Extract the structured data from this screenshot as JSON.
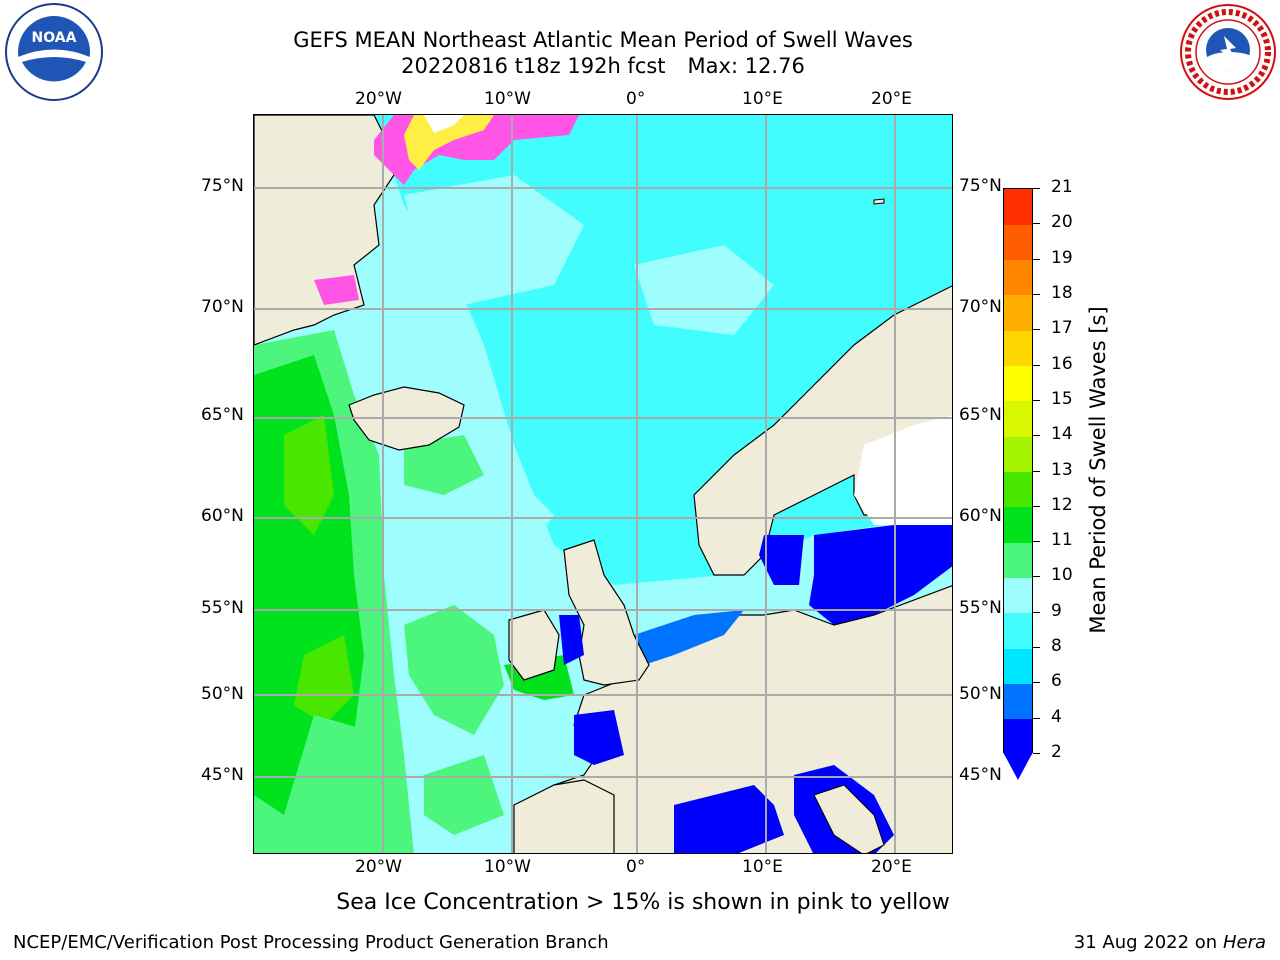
{
  "header": {
    "title_line1": "GEFS MEAN Northeast Atlantic Mean Period of Swell Waves",
    "title_run": "20220816 t18z 192h fcst",
    "title_max": "Max: 12.76"
  },
  "logos": {
    "left": "noaa-logo",
    "right": "national-weather-service-logo"
  },
  "map": {
    "top_lon_labels": [
      "20°W",
      "10°W",
      "0°",
      "10°E",
      "20°E"
    ],
    "bottom_lon_labels": [
      "20°W",
      "10°W",
      "0°",
      "10°E",
      "20°E"
    ],
    "left_lat_labels": [
      "75°N",
      "70°N",
      "65°N",
      "60°N",
      "55°N",
      "50°N",
      "45°N"
    ],
    "right_lat_labels": [
      "75°N",
      "70°N",
      "65°N",
      "60°N",
      "55°N",
      "50°N",
      "45°N"
    ],
    "colors": {
      "land": "#efedda",
      "ocean_light": "#9efdfd",
      "ocean_cyan": "#42fdfd",
      "green_light": "#4cf57c",
      "green": "#00e31c",
      "blue": "#0000ff",
      "ice_pink": "#ff55e6",
      "ice_yellow": "#ffee44"
    }
  },
  "colorbar": {
    "title": "Mean Period of Swell Waves [s]",
    "tick_labels": [
      "2",
      "4",
      "6",
      "8",
      "9",
      "10",
      "11",
      "12",
      "13",
      "14",
      "15",
      "16",
      "17",
      "18",
      "19",
      "20",
      "21"
    ],
    "colors": [
      "#0000ff",
      "#0073ff",
      "#00e5ff",
      "#42fdfd",
      "#9efdfd",
      "#4cf57c",
      "#00e31c",
      "#49e700",
      "#a4f300",
      "#d9f700",
      "#ffff00",
      "#ffd700",
      "#ffae00",
      "#ff8700",
      "#ff5e00",
      "#ff3000",
      "#ff0000"
    ]
  },
  "footnote": "Sea Ice Concentration > 15% is shown in pink to yellow",
  "credit": "NCEP/EMC/Verification Post Processing Product Generation Branch",
  "date_text": "31 Aug 2022 on",
  "date_machine": "Hera"
}
